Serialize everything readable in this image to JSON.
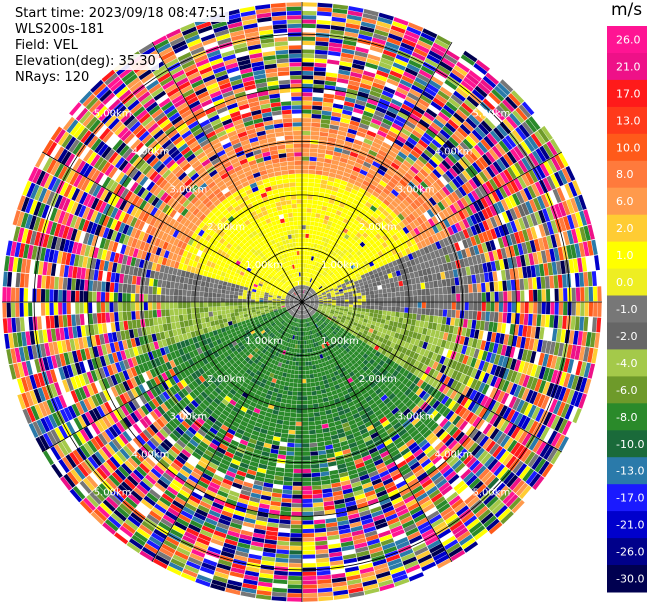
{
  "header": {
    "start_time": "Start time: 2023/09/18 08:47:51",
    "instrument": "WLS200s-181",
    "field": "Field: VEL",
    "elevation": "Elevation(deg): 35.30",
    "nrays": "NRays: 120"
  },
  "chart_data": {
    "type": "heatmap",
    "projection": "polar-ppi",
    "field": "VEL",
    "units": "m/s",
    "n_rays": 120,
    "elevation_deg": 35.3,
    "range_ring_labels": [
      "1.00km",
      "2.00km",
      "3.00km",
      "4.00km",
      "5.00km"
    ],
    "range_rings_km": [
      1,
      2,
      3,
      4,
      5
    ],
    "max_range_km": 5.6,
    "colorbar": {
      "label": "m/s",
      "tick_labels": [
        "26.0",
        "21.0",
        "17.0",
        "13.0",
        "10.0",
        "8.0",
        "6.0",
        "2.0",
        "1.0",
        "0.0",
        "-1.0",
        "-2.0",
        "-4.0",
        "-6.0",
        "-8.0",
        "-10.0",
        "-13.0",
        "-17.0",
        "-21.0",
        "-26.0",
        "-30.0"
      ],
      "colors": [
        "#ff1493",
        "#ee1188",
        "#ff1a1a",
        "#ff3a1a",
        "#ff5a1a",
        "#ff7a3c",
        "#ff9a4c",
        "#ffcc33",
        "#ffff00",
        "#eeee22",
        "#777777",
        "#666666",
        "#a4c94a",
        "#6e9a2a",
        "#2a8a2a",
        "#1a6a3a",
        "#2a7aaa",
        "#1a1aff",
        "#0000cc",
        "#00008a",
        "#000050",
        "#ffffff"
      ]
    }
  }
}
